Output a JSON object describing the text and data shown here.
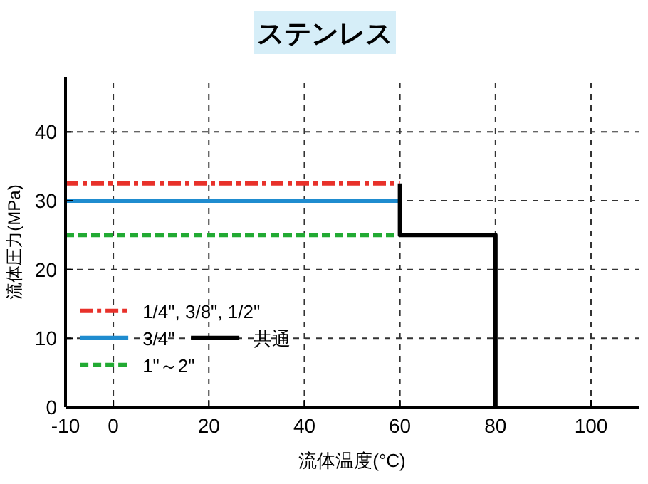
{
  "chart_data": {
    "type": "line",
    "title": "ステンレス",
    "xlabel": "流体温度(°C)",
    "ylabel": "流体圧力(MPa)",
    "xlim": [
      -10,
      110
    ],
    "ylim": [
      0,
      48
    ],
    "xticks": [
      -10,
      0,
      20,
      40,
      60,
      80,
      100
    ],
    "yticks": [
      0,
      10,
      20,
      30,
      40
    ],
    "grid": true,
    "legend": "bottom left",
    "series": [
      {
        "name": "1/4\", 3/8\", 1/2\"",
        "color": "#e8312a",
        "line_style": "dashdot",
        "x": [
          -10,
          60
        ],
        "values": [
          32.5,
          32.5
        ]
      },
      {
        "name": "3/4\"",
        "color": "#1f8ccf",
        "line_style": "solid",
        "x": [
          -10,
          60
        ],
        "values": [
          30,
          30
        ]
      },
      {
        "name": "1\"～2\"",
        "color": "#22aa33",
        "line_style": "dashed",
        "x": [
          -10,
          60
        ],
        "values": [
          25,
          25
        ]
      },
      {
        "name": "共通",
        "color": "#000000",
        "line_style": "solid",
        "x": [
          60,
          60,
          80,
          80
        ],
        "values": [
          32.5,
          25,
          25,
          0
        ]
      }
    ]
  }
}
